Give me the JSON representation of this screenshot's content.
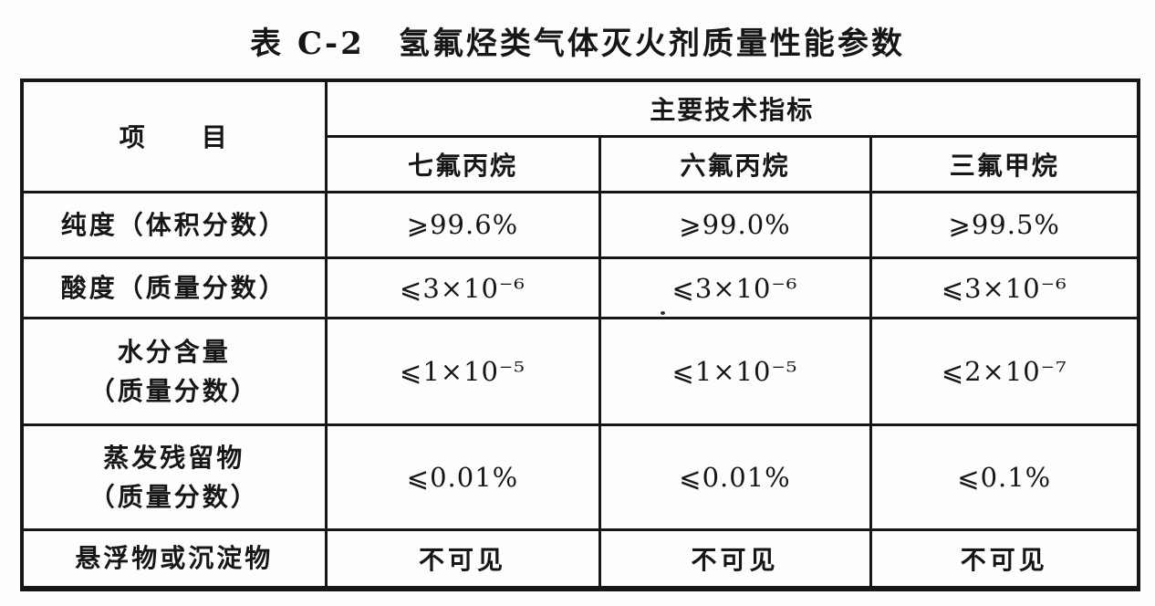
{
  "page": {
    "background": "#fdfdfc",
    "ink": "#161616"
  },
  "title": "表 C-2　氢氟烃类气体灭火剂质量性能参数",
  "table": {
    "item_header": "项　　目",
    "group_header": "主要技术指标",
    "agent_headers": [
      "七氟丙烷",
      "六氟丙烷",
      "三氟甲烷"
    ],
    "rows": [
      {
        "label": "纯度（体积分数）",
        "values": [
          "⩾99.6%",
          "⩾99.0%",
          "⩾99.5%"
        ]
      },
      {
        "label": "酸度（质量分数）",
        "values": [
          "⩽3×10⁻⁶",
          "⩽3×10⁻⁶",
          "⩽3×10⁻⁶"
        ]
      },
      {
        "label": "水分含量\n（质量分数）",
        "values": [
          "⩽1×10⁻⁵",
          "⩽1×10⁻⁵",
          "⩽2×10⁻⁷"
        ]
      },
      {
        "label": "蒸发残留物\n（质量分数）",
        "values": [
          "⩽0.01%",
          "⩽0.01%",
          "⩽0.1%"
        ]
      },
      {
        "label": "悬浮物或沉淀物",
        "values": [
          "不可见",
          "不可见",
          "不可见"
        ]
      }
    ]
  }
}
